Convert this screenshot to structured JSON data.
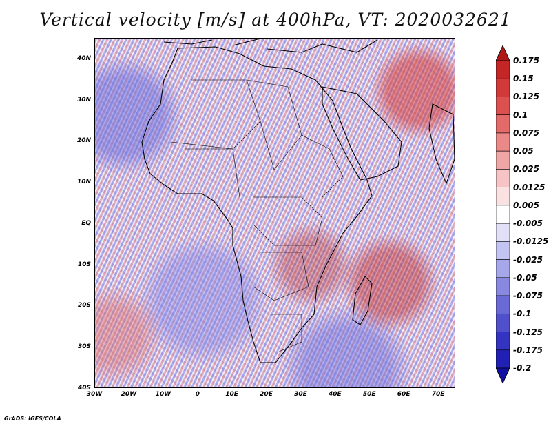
{
  "title": "Vertical velocity [m/s] at 400hPa, VT: 2020032621",
  "footer": "GrADS: IGES/COLA",
  "map": {
    "lon_range": [
      -30,
      75
    ],
    "lat_range": [
      -40,
      45
    ],
    "lat_labels": [
      "40N",
      "30N",
      "20N",
      "10N",
      "EQ",
      "10S",
      "20S",
      "30S",
      "40S"
    ],
    "lon_labels": [
      "30W",
      "20W",
      "10W",
      "0",
      "10E",
      "20E",
      "30E",
      "40E",
      "50E",
      "60E",
      "70E"
    ]
  },
  "colorbar": {
    "labels": [
      "0.175",
      "0.15",
      "0.125",
      "0.1",
      "0.075",
      "0.05",
      "0.025",
      "0.0125",
      "0.005",
      "-0.005",
      "-0.0125",
      "-0.025",
      "-0.05",
      "-0.075",
      "-0.1",
      "-0.125",
      "-0.175",
      "-0.2"
    ],
    "colors": [
      "#b01818",
      "#c42626",
      "#d23a3a",
      "#dc5050",
      "#e46a6a",
      "#eb8888",
      "#f1a6a6",
      "#f6c4c4",
      "#fbe2e2",
      "#ffffff",
      "#e0e0f8",
      "#c4c4f2",
      "#a6a6ea",
      "#8888e0",
      "#6a6ad6",
      "#5050cc",
      "#3434c2",
      "#2020b4",
      "#1010a4"
    ]
  }
}
